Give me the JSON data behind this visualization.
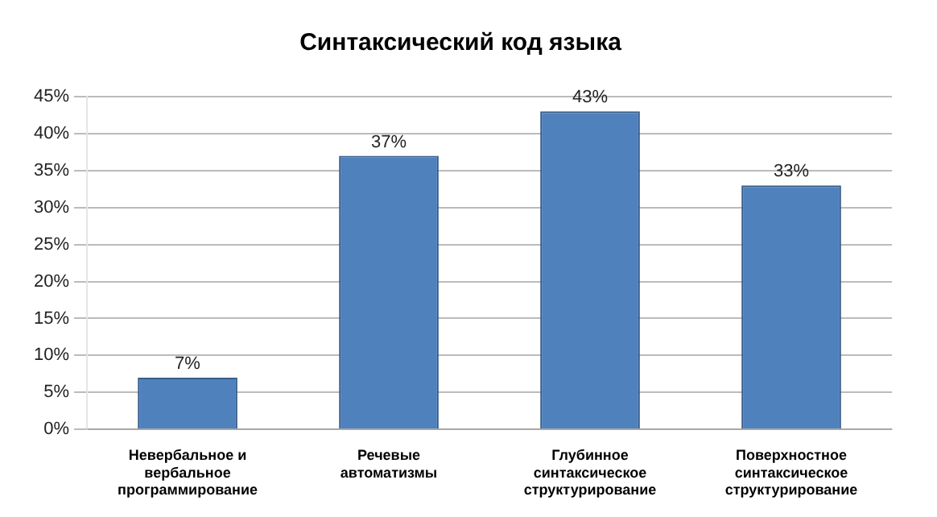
{
  "chart_data": {
    "type": "bar",
    "title": "Синтаксический код языка",
    "categories": [
      "Невербальное и вербальное программирование",
      "Речевые автоматизмы",
      "Глубинное синтаксическое структурирование",
      "Поверхностное синтаксическое структурирование"
    ],
    "values": [
      7,
      37,
      43,
      33
    ],
    "value_labels": [
      "7%",
      "37%",
      "43%",
      "33%"
    ],
    "color": "#4f81bd",
    "ylim": [
      0,
      45
    ],
    "yticks": [
      {
        "value": 0,
        "label": "0%"
      },
      {
        "value": 5,
        "label": "5%"
      },
      {
        "value": 10,
        "label": "10%"
      },
      {
        "value": 15,
        "label": "15%"
      },
      {
        "value": 20,
        "label": "20%"
      },
      {
        "value": 25,
        "label": "25%"
      },
      {
        "value": 30,
        "label": "30%"
      },
      {
        "value": 35,
        "label": "35%"
      },
      {
        "value": 40,
        "label": "40%"
      },
      {
        "value": 45,
        "label": "45%"
      }
    ],
    "grid": "y",
    "legend": false
  }
}
